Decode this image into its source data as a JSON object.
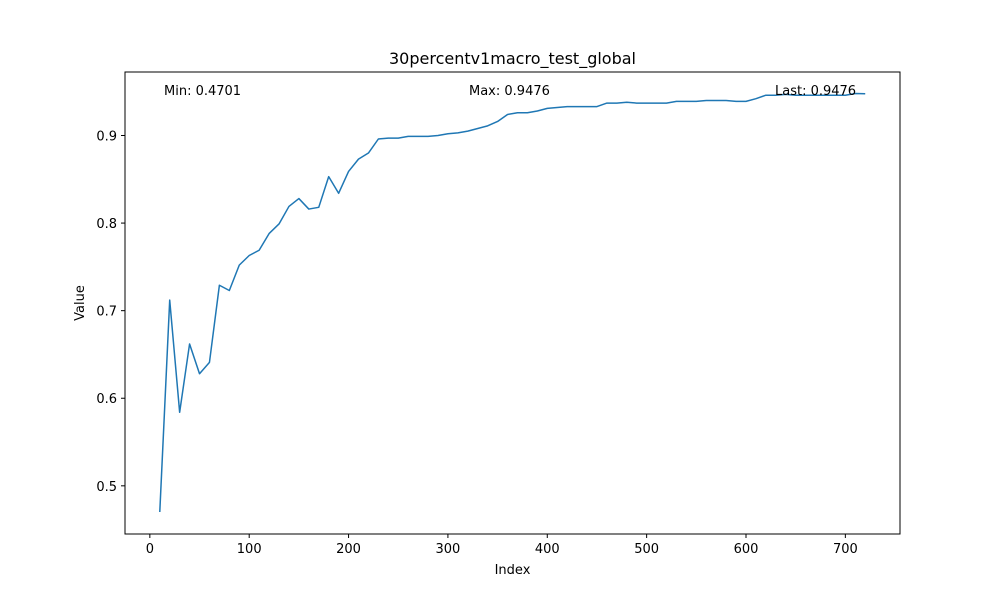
{
  "chart_data": {
    "type": "line",
    "title": "30percentv1macro_test_global",
    "xlabel": "Index",
    "ylabel": "Value",
    "xlim": [
      -25,
      755
    ],
    "ylim": [
      0.445,
      0.9725
    ],
    "xticks": [
      0,
      100,
      200,
      300,
      400,
      500,
      600,
      700
    ],
    "yticks": [
      0.5,
      0.6,
      0.7,
      0.8,
      0.9
    ],
    "ytick_labels": [
      "0.5",
      "0.6",
      "0.7",
      "0.8",
      "0.9"
    ],
    "grid": false,
    "series": [
      {
        "color": "#1f77b4",
        "x": [
          10,
          20,
          30,
          40,
          50,
          60,
          70,
          80,
          90,
          100,
          110,
          120,
          130,
          140,
          150,
          160,
          170,
          180,
          190,
          200,
          210,
          220,
          230,
          240,
          250,
          260,
          270,
          280,
          290,
          300,
          310,
          320,
          330,
          340,
          350,
          360,
          370,
          380,
          390,
          400,
          410,
          420,
          430,
          440,
          450,
          460,
          470,
          480,
          490,
          500,
          510,
          520,
          530,
          540,
          550,
          560,
          570,
          580,
          590,
          600,
          610,
          620,
          630,
          640,
          650,
          660,
          670,
          680,
          690,
          700,
          710,
          720
        ],
        "values": [
          0.4701,
          0.712,
          0.584,
          0.662,
          0.628,
          0.641,
          0.729,
          0.723,
          0.752,
          0.763,
          0.769,
          0.788,
          0.799,
          0.819,
          0.828,
          0.816,
          0.818,
          0.853,
          0.834,
          0.859,
          0.873,
          0.88,
          0.896,
          0.897,
          0.897,
          0.899,
          0.899,
          0.899,
          0.9,
          0.902,
          0.903,
          0.905,
          0.908,
          0.911,
          0.916,
          0.924,
          0.926,
          0.926,
          0.928,
          0.931,
          0.932,
          0.933,
          0.933,
          0.933,
          0.933,
          0.937,
          0.937,
          0.938,
          0.937,
          0.937,
          0.937,
          0.937,
          0.939,
          0.939,
          0.939,
          0.94,
          0.94,
          0.94,
          0.939,
          0.939,
          0.942,
          0.946,
          0.946,
          0.947,
          0.946,
          0.946,
          0.946,
          0.946,
          0.946,
          0.946,
          0.948,
          0.9476
        ]
      }
    ],
    "annotations": {
      "min": "Min: 0.4701",
      "max": "Max: 0.9476",
      "last": "Last: 0.9476"
    }
  }
}
